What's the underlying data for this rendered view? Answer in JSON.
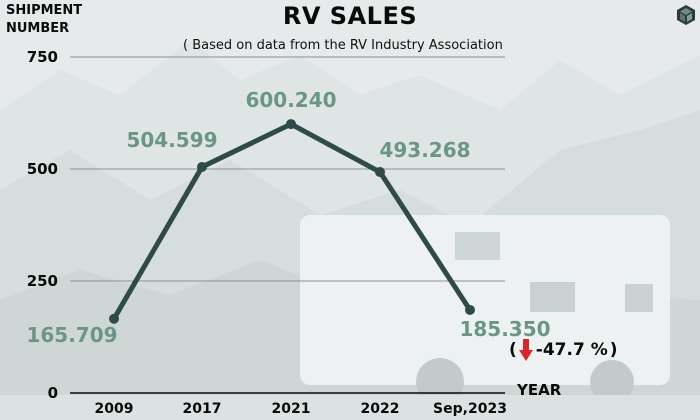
{
  "chart_data": {
    "type": "line",
    "title": "RV SALES",
    "subtitle": "( Based on data from the RV Industry Association",
    "ylabel": "SHIPMENT NUMBER",
    "xlabel": "YEAR",
    "categories": [
      "2009",
      "2017",
      "2021",
      "2022",
      "Sep,2023"
    ],
    "series": [
      {
        "values": [
          165.709,
          504.599,
          600.24,
          493.268,
          185.35
        ]
      }
    ],
    "data_labels": [
      "165.709",
      "504.599",
      "600.240",
      "493.268",
      "185.350"
    ],
    "yticks": [
      0,
      250,
      500,
      750
    ],
    "ylim": [
      0,
      750
    ],
    "grid": true,
    "line_color": "#2f4a48",
    "label_color": "#6b9684"
  },
  "annotation": {
    "open": "(",
    "change": "-47.7 %",
    "close": ")",
    "arrow_color": "#d7262d",
    "icon": "down-arrow-icon"
  },
  "logo": {
    "icon": "cube-logo-icon"
  }
}
